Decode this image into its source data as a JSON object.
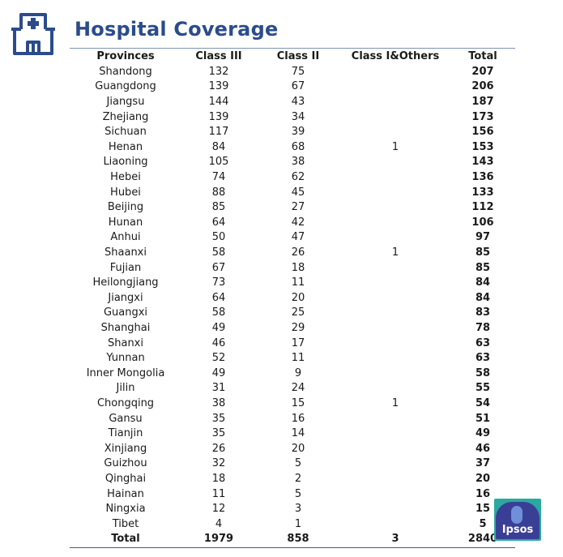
{
  "title": "Hospital Coverage",
  "logo_text": "Ipsos",
  "colors": {
    "title": "#2b4c8c",
    "icon": "#2b4c8c",
    "logo_teal": "#2aa9a1",
    "logo_blue": "#3a3f96"
  },
  "table": {
    "headers": [
      "Provinces",
      "Class III",
      "Class II",
      "Class I&Others",
      "Total"
    ],
    "rows": [
      [
        "Shandong",
        "132",
        "75",
        "",
        "207"
      ],
      [
        "Guangdong",
        "139",
        "67",
        "",
        "206"
      ],
      [
        "Jiangsu",
        "144",
        "43",
        "",
        "187"
      ],
      [
        "Zhejiang",
        "139",
        "34",
        "",
        "173"
      ],
      [
        "Sichuan",
        "117",
        "39",
        "",
        "156"
      ],
      [
        "Henan",
        "84",
        "68",
        "1",
        "153"
      ],
      [
        "Liaoning",
        "105",
        "38",
        "",
        "143"
      ],
      [
        "Hebei",
        "74",
        "62",
        "",
        "136"
      ],
      [
        "Hubei",
        "88",
        "45",
        "",
        "133"
      ],
      [
        "Beijing",
        "85",
        "27",
        "",
        "112"
      ],
      [
        "Hunan",
        "64",
        "42",
        "",
        "106"
      ],
      [
        "Anhui",
        "50",
        "47",
        "",
        "97"
      ],
      [
        "Shaanxi",
        "58",
        "26",
        "1",
        "85"
      ],
      [
        "Fujian",
        "67",
        "18",
        "",
        "85"
      ],
      [
        "Heilongjiang",
        "73",
        "11",
        "",
        "84"
      ],
      [
        "Jiangxi",
        "64",
        "20",
        "",
        "84"
      ],
      [
        "Guangxi",
        "58",
        "25",
        "",
        "83"
      ],
      [
        "Shanghai",
        "49",
        "29",
        "",
        "78"
      ],
      [
        "Shanxi",
        "46",
        "17",
        "",
        "63"
      ],
      [
        "Yunnan",
        "52",
        "11",
        "",
        "63"
      ],
      [
        "Inner Mongolia",
        "49",
        "9",
        "",
        "58"
      ],
      [
        "Jilin",
        "31",
        "24",
        "",
        "55"
      ],
      [
        "Chongqing",
        "38",
        "15",
        "1",
        "54"
      ],
      [
        "Gansu",
        "35",
        "16",
        "",
        "51"
      ],
      [
        "Tianjin",
        "35",
        "14",
        "",
        "49"
      ],
      [
        "Xinjiang",
        "26",
        "20",
        "",
        "46"
      ],
      [
        "Guizhou",
        "32",
        "5",
        "",
        "37"
      ],
      [
        "Qinghai",
        "18",
        "2",
        "",
        "20"
      ],
      [
        "Hainan",
        "11",
        "5",
        "",
        "16"
      ],
      [
        "Ningxia",
        "12",
        "3",
        "",
        "15"
      ],
      [
        "Tibet",
        "4",
        "1",
        "",
        "5"
      ]
    ],
    "total_row": [
      "Total",
      "1979",
      "858",
      "3",
      "2840"
    ]
  }
}
